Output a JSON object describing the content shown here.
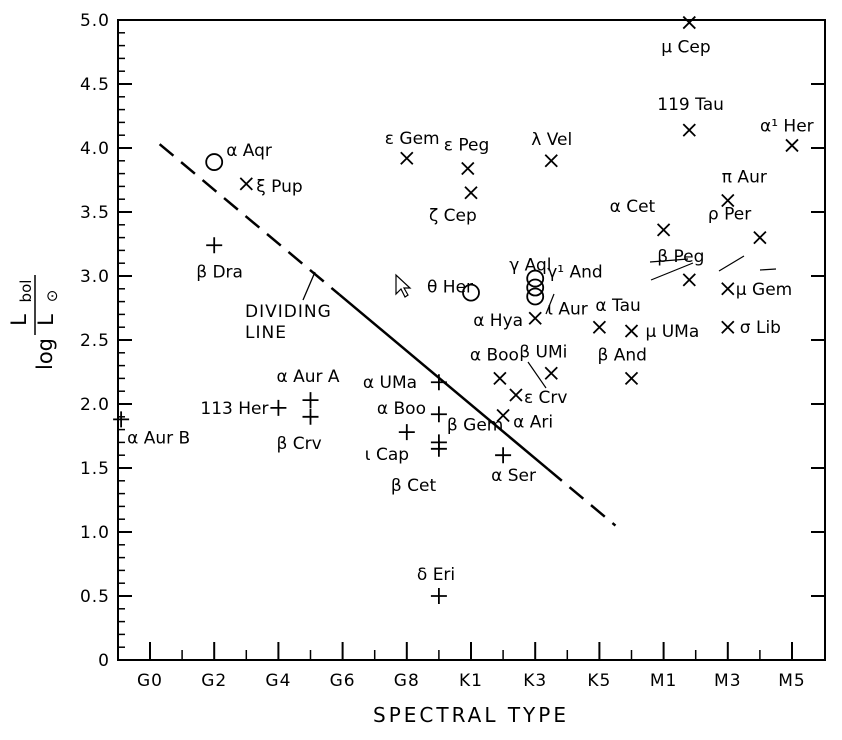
{
  "chart_data": {
    "type": "scatter",
    "title": "",
    "xlabel": "SPECTRAL TYPE",
    "ylabel": {
      "prefix": "log",
      "numerator": "L",
      "numerator_sub": "bol",
      "denominator": "L",
      "denominator_sub": "⊙"
    },
    "x_ticks": [
      "G0",
      "G2",
      "G4",
      "G6",
      "G8",
      "K1",
      "K3",
      "K5",
      "M1",
      "M3",
      "M5"
    ],
    "y_ticks": [
      "0",
      "0.5",
      "1.0",
      "1.5",
      "2.0",
      "2.5",
      "3.0",
      "3.5",
      "4.0",
      "4.5",
      "5.0"
    ],
    "ylim": [
      0,
      5.0
    ],
    "grid": false,
    "marker_legend": {
      "circle": "o",
      "cross": "x",
      "plus": "+"
    },
    "points": [
      {
        "label": "α Aqr",
        "x": 2,
        "y": 3.89,
        "marker": "circle"
      },
      {
        "label": "ξ Pup",
        "x": 3,
        "y": 3.72,
        "marker": "cross"
      },
      {
        "label": "β Dra",
        "x": 2,
        "y": 3.24,
        "marker": "plus"
      },
      {
        "label": "α Aur B",
        "x": -0.9,
        "y": 1.88,
        "marker": "plus"
      },
      {
        "label": "113 Her",
        "x": 4,
        "y": 1.97,
        "marker": "plus"
      },
      {
        "label": "α Aur A",
        "x": 5,
        "y": 2.03,
        "marker": "plus"
      },
      {
        "label": "β Crv",
        "x": 5,
        "y": 1.9,
        "marker": "plus"
      },
      {
        "label": "ε Gem",
        "x": 8,
        "y": 3.92,
        "marker": "cross"
      },
      {
        "label": "ε Peg",
        "x": 9.9,
        "y": 3.84,
        "marker": "cross"
      },
      {
        "label": "λ Vel",
        "x": 12.5,
        "y": 3.9,
        "marker": "cross"
      },
      {
        "label": "ζ Cep",
        "x": 10,
        "y": 3.65,
        "marker": "cross"
      },
      {
        "label": "θ Her",
        "x": 10,
        "y": 2.87,
        "marker": "circle"
      },
      {
        "label": "γ Aql",
        "x": 12,
        "y": 2.98,
        "marker": "circle"
      },
      {
        "label": "γ¹ And",
        "x": 12,
        "y": 2.91,
        "marker": "circle"
      },
      {
        "label": "ι Aur",
        "x": 12,
        "y": 2.84,
        "marker": "circle"
      },
      {
        "label": "α Hya",
        "x": 12,
        "y": 2.67,
        "marker": "cross"
      },
      {
        "label": "α Tau",
        "x": 14,
        "y": 2.6,
        "marker": "cross"
      },
      {
        "label": "μ UMa",
        "x": 15,
        "y": 2.57,
        "marker": "cross"
      },
      {
        "label": "α Boo",
        "x": 10.9,
        "y": 2.2,
        "marker": "cross"
      },
      {
        "label": "β UMi",
        "x": 12.5,
        "y": 2.24,
        "marker": "cross"
      },
      {
        "label": "β And",
        "x": 15,
        "y": 2.2,
        "marker": "cross"
      },
      {
        "label": "ε Crv",
        "x": 11.4,
        "y": 2.07,
        "marker": "cross"
      },
      {
        "label": "α Ari",
        "x": 11,
        "y": 1.91,
        "marker": "cross"
      },
      {
        "label": "α UMa",
        "x": 9,
        "y": 2.17,
        "marker": "plus"
      },
      {
        "label": "α Boo",
        "x": 9,
        "y": 1.92,
        "marker": "plus"
      },
      {
        "label": "β Gem",
        "x": 9,
        "y": 1.7,
        "marker": "plus"
      },
      {
        "label": "ι Cap",
        "x": 8,
        "y": 1.78,
        "marker": "plus"
      },
      {
        "label": "β Cet",
        "x": 9,
        "y": 1.65,
        "marker": "plus"
      },
      {
        "label": "α Ser",
        "x": 11,
        "y": 1.6,
        "marker": "plus"
      },
      {
        "label": "δ Eri",
        "x": 9,
        "y": 0.5,
        "marker": "plus"
      },
      {
        "label": "μ Cep",
        "x": 16.8,
        "y": 4.98,
        "marker": "cross"
      },
      {
        "label": "119 Tau",
        "x": 16.8,
        "y": 4.14,
        "marker": "cross"
      },
      {
        "label": "α¹ Her",
        "x": 20,
        "y": 4.02,
        "marker": "cross"
      },
      {
        "label": "π Aur",
        "x": 18,
        "y": 3.59,
        "marker": "cross"
      },
      {
        "label": "α Cet",
        "x": 16,
        "y": 3.36,
        "marker": "cross"
      },
      {
        "label": "ρ Per",
        "x": 19,
        "y": 3.3,
        "marker": "cross"
      },
      {
        "label": "β Peg",
        "x": 16.8,
        "y": 2.97,
        "marker": "cross"
      },
      {
        "label": "μ Gem",
        "x": 18,
        "y": 2.9,
        "marker": "cross"
      },
      {
        "label": "σ Lib",
        "x": 18,
        "y": 2.6,
        "marker": "cross"
      }
    ],
    "dividing_line": {
      "label": "DIVIDING LINE",
      "start": [
        0.3,
        4.03
      ],
      "end": [
        14.5,
        1.05
      ],
      "solid_range": [
        5.9,
        12.4
      ]
    }
  }
}
